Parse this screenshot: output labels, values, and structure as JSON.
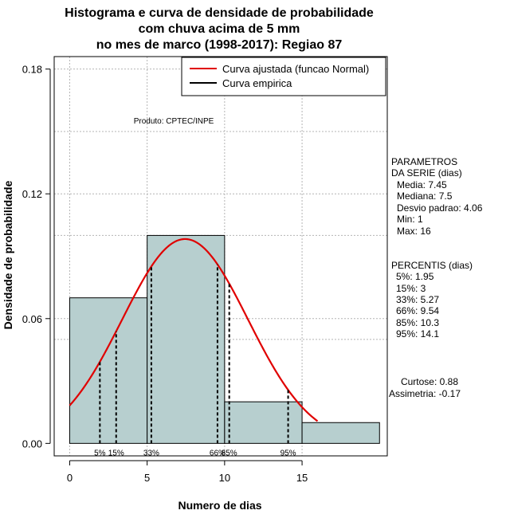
{
  "chart_data": {
    "type": "histogram",
    "title_lines": [
      "Histograma e curva de densidade de probabilidade",
      "com chuva acima de 5 mm",
      "no mes de marco (1998-2017): Regiao 87"
    ],
    "xlabel": "Numero de dias",
    "ylabel": "Densidade de probabilidade",
    "xlim": [
      -1,
      20.5
    ],
    "ylim": [
      -0.006,
      0.186
    ],
    "x_ticks": [
      0,
      5,
      10,
      15
    ],
    "x_tick_labels": [
      "0",
      "5",
      "10",
      "15"
    ],
    "y_ticks": [
      0.0,
      0.06,
      0.12,
      0.18
    ],
    "y_tick_labels": [
      "0.00",
      "0.06",
      "0.12",
      "0.18"
    ],
    "grid_x": [
      0,
      5,
      10,
      15
    ],
    "grid_y": [
      0.06,
      0.12,
      0.18
    ],
    "grid_y_minor": [
      0.05,
      0.1,
      0.15
    ],
    "bins": [
      {
        "from": 0,
        "to": 5,
        "density": 0.07
      },
      {
        "from": 5,
        "to": 10,
        "density": 0.1
      },
      {
        "from": 10,
        "to": 15,
        "density": 0.02
      },
      {
        "from": 15,
        "to": 20,
        "density": 0.01
      }
    ],
    "normal_fit": {
      "mean": 7.45,
      "sd": 4.06,
      "x_from": 0,
      "x_to": 16
    },
    "percentile_lines": [
      {
        "label": "5%",
        "x": 1.95
      },
      {
        "label": "15%",
        "x": 3
      },
      {
        "label": "33%",
        "x": 5.27
      },
      {
        "label": "66%",
        "x": 9.54
      },
      {
        "label": "85%",
        "x": 10.3
      },
      {
        "label": "95%",
        "x": 14.1
      }
    ],
    "legend": [
      {
        "label": "Curva ajustada (funcao Normal)",
        "color": "#e00000"
      },
      {
        "label": "Curva empirica",
        "color": "#000000"
      }
    ],
    "legend_position": "top-right",
    "annotation": "Produto: CPTEC/INPE",
    "params_title": [
      "PARAMETROS",
      "DA SERIE (dias)"
    ],
    "params": [
      "Media: 7.45",
      "Mediana: 7.5",
      "Desvio padrao: 4.06",
      "Min: 1",
      "Max: 16"
    ],
    "percentis_title": "PERCENTIS (dias)",
    "percentis": [
      "5%: 1.95",
      "15%: 3",
      "33%: 5.27",
      "66%: 9.54",
      "85%: 10.3",
      "95%: 14.1"
    ],
    "shape_stats": [
      "Curtose: 0.88",
      "Assimetria: -0.17"
    ],
    "colors": {
      "bar_fill": "#b7cfcf",
      "curve": "#e00000",
      "grid": "#b4b4b4"
    }
  }
}
